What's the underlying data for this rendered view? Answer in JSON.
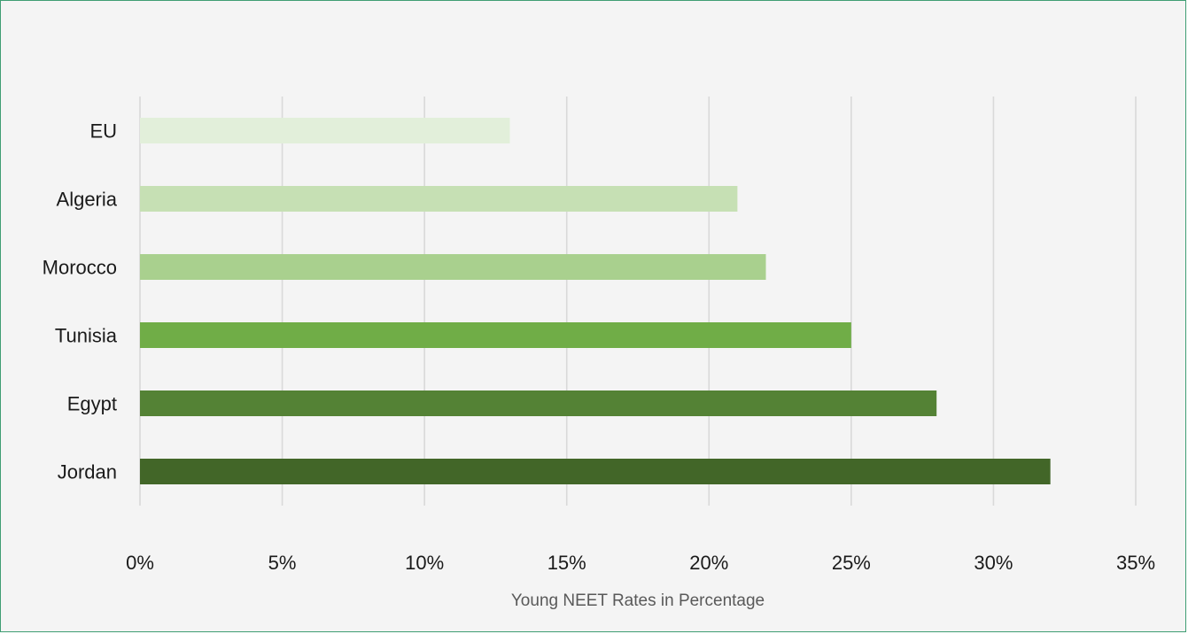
{
  "chart_data": {
    "type": "bar",
    "orientation": "horizontal",
    "categories": [
      "EU",
      "Algeria",
      "Morocco",
      "Tunisia",
      "Egypt",
      "Jordan"
    ],
    "values": [
      0.13,
      0.21,
      0.22,
      0.25,
      0.28,
      0.32
    ],
    "bar_colors": [
      "#e2efda",
      "#c6e0b4",
      "#a9d08e",
      "#70ad47",
      "#548235",
      "#426628"
    ],
    "xlabel": "Young NEET Rates in Percentage",
    "ylabel": "",
    "title": "",
    "xlim": [
      0,
      0.35
    ],
    "x_ticks": [
      "0%",
      "5%",
      "10%",
      "15%",
      "20%",
      "25%",
      "30%",
      "35%"
    ],
    "grid": "vertical",
    "legend": "none"
  }
}
